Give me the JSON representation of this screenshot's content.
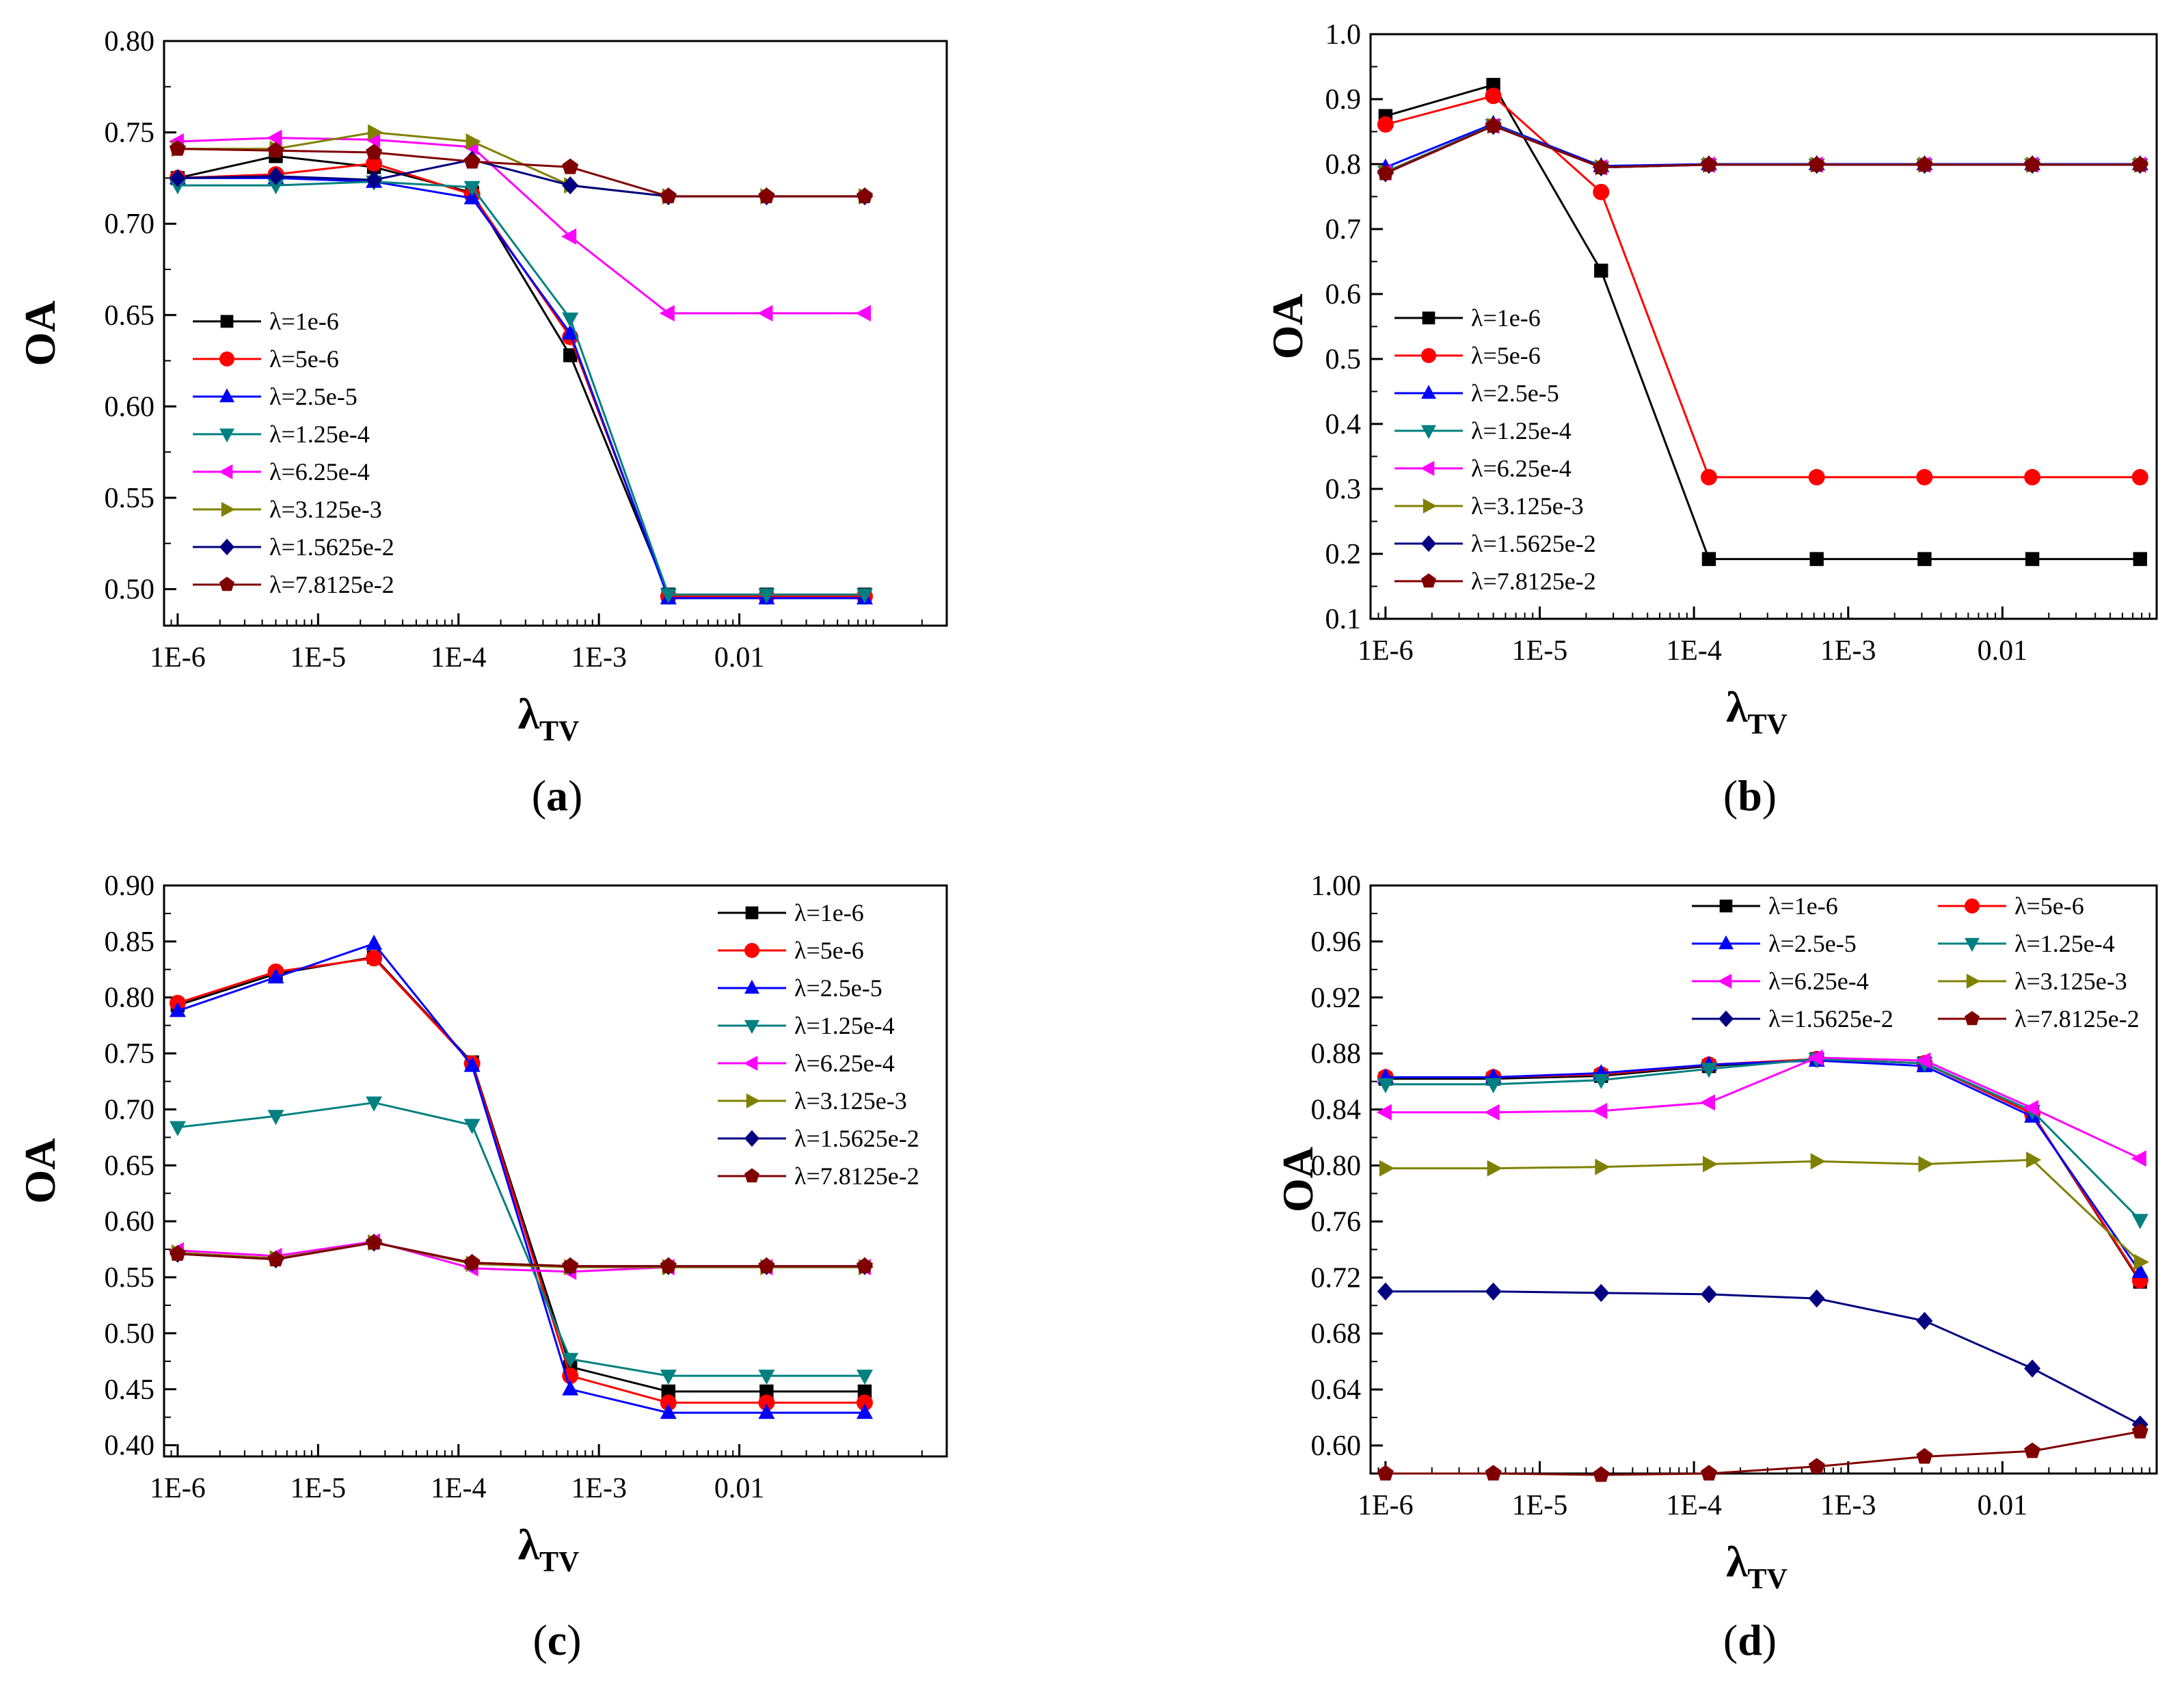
{
  "chart_data": [
    {
      "type": "line",
      "caption_letter": "a",
      "xlabel_main": "λ",
      "xlabel_sub": "TV",
      "ylabel": "OA",
      "x_scale": "log",
      "xlim": [
        8e-07,
        0.3
      ],
      "ylim": [
        0.48,
        0.8
      ],
      "xticks": [
        1e-06,
        1e-05,
        0.0001,
        0.001,
        0.01
      ],
      "xtick_labels": [
        "1E-6",
        "1E-5",
        "1E-4",
        "1E-3",
        "0.01"
      ],
      "yticks": [
        0.5,
        0.55,
        0.6,
        0.65,
        0.7,
        0.75,
        0.8
      ],
      "ytick_labels": [
        "0.50",
        "0.55",
        "0.60",
        "0.65",
        "0.70",
        "0.75",
        "0.80"
      ],
      "grid": false,
      "legend": {
        "position": "left",
        "columns": 1
      },
      "x": [
        1e-06,
        5e-06,
        2.5e-05,
        0.000125,
        0.000625,
        0.003125,
        0.015625,
        0.078125
      ],
      "series": [
        {
          "name": "λ=1e-6",
          "color": "#000000",
          "marker": "square",
          "values": [
            0.725,
            0.737,
            0.731,
            0.717,
            0.628,
            0.497,
            0.497,
            0.497
          ]
        },
        {
          "name": "λ=5e-6",
          "color": "#ff0000",
          "marker": "circle",
          "values": [
            0.725,
            0.727,
            0.733,
            0.716,
            0.638,
            0.496,
            0.496,
            0.496
          ]
        },
        {
          "name": "λ=2.5e-5",
          "color": "#0000ff",
          "marker": "triangle-up",
          "values": [
            0.725,
            0.725,
            0.723,
            0.714,
            0.64,
            0.495,
            0.495,
            0.495
          ]
        },
        {
          "name": "λ=1.25e-4",
          "color": "#008080",
          "marker": "triangle-down",
          "values": [
            0.721,
            0.721,
            0.723,
            0.72,
            0.648,
            0.497,
            0.497,
            0.497
          ]
        },
        {
          "name": "λ=6.25e-4",
          "color": "#ff00ff",
          "marker": "triangle-left",
          "values": [
            0.745,
            0.747,
            0.746,
            0.742,
            0.693,
            0.651,
            0.651,
            0.651
          ]
        },
        {
          "name": "λ=3.125e-3",
          "color": "#808000",
          "marker": "triangle-right",
          "values": [
            0.741,
            0.741,
            0.75,
            0.745,
            0.721,
            0.715,
            0.715,
            0.715
          ]
        },
        {
          "name": "λ=1.5625e-2",
          "color": "#000080",
          "marker": "diamond",
          "values": [
            0.725,
            0.726,
            0.724,
            0.735,
            0.721,
            0.715,
            0.715,
            0.715
          ]
        },
        {
          "name": "λ=7.8125e-2",
          "color": "#800000",
          "marker": "pentagon",
          "values": [
            0.741,
            0.74,
            0.739,
            0.734,
            0.731,
            0.715,
            0.715,
            0.715
          ]
        }
      ]
    },
    {
      "type": "line",
      "caption_letter": "b",
      "xlabel_main": "λ",
      "xlabel_sub": "TV",
      "ylabel": "OA",
      "x_scale": "log",
      "xlim": [
        8e-07,
        0.1
      ],
      "ylim": [
        0.1,
        1.0
      ],
      "xticks": [
        1e-06,
        1e-05,
        0.0001,
        0.001,
        0.01
      ],
      "xtick_labels": [
        "1E-6",
        "1E-5",
        "1E-4",
        "1E-3",
        "0.01"
      ],
      "yticks": [
        0.1,
        0.2,
        0.3,
        0.4,
        0.5,
        0.6,
        0.7,
        0.8,
        0.9,
        1.0
      ],
      "ytick_labels": [
        "0.1",
        "0.2",
        "0.3",
        "0.4",
        "0.5",
        "0.6",
        "0.7",
        "0.8",
        "0.9",
        "1.0"
      ],
      "grid": false,
      "legend": {
        "position": "left",
        "columns": 1
      },
      "x": [
        1e-06,
        5e-06,
        2.5e-05,
        0.000125,
        0.000625,
        0.003125,
        0.015625,
        0.078125
      ],
      "series": [
        {
          "name": "λ=1e-6",
          "color": "#000000",
          "marker": "square",
          "values": [
            0.874,
            0.922,
            0.636,
            0.192,
            0.192,
            0.192,
            0.192,
            0.192
          ]
        },
        {
          "name": "λ=5e-6",
          "color": "#ff0000",
          "marker": "circle",
          "values": [
            0.861,
            0.905,
            0.757,
            0.318,
            0.318,
            0.318,
            0.318,
            0.318
          ]
        },
        {
          "name": "λ=2.5e-5",
          "color": "#0000ff",
          "marker": "triangle-up",
          "values": [
            0.795,
            0.862,
            0.797,
            0.8,
            0.8,
            0.8,
            0.8,
            0.8
          ]
        },
        {
          "name": "λ=1.25e-4",
          "color": "#008080",
          "marker": "triangle-down",
          "values": [
            0.788,
            0.86,
            0.795,
            0.799,
            0.799,
            0.799,
            0.799,
            0.799
          ]
        },
        {
          "name": "λ=6.25e-4",
          "color": "#ff00ff",
          "marker": "triangle-left",
          "values": [
            0.787,
            0.859,
            0.795,
            0.799,
            0.799,
            0.799,
            0.799,
            0.799
          ]
        },
        {
          "name": "λ=3.125e-3",
          "color": "#808000",
          "marker": "triangle-right",
          "values": [
            0.787,
            0.859,
            0.795,
            0.799,
            0.799,
            0.799,
            0.799,
            0.799
          ]
        },
        {
          "name": "λ=1.5625e-2",
          "color": "#000080",
          "marker": "diamond",
          "values": [
            0.786,
            0.859,
            0.795,
            0.799,
            0.799,
            0.799,
            0.799,
            0.799
          ]
        },
        {
          "name": "λ=7.8125e-2",
          "color": "#800000",
          "marker": "pentagon",
          "values": [
            0.786,
            0.859,
            0.795,
            0.799,
            0.799,
            0.799,
            0.799,
            0.799
          ]
        }
      ]
    },
    {
      "type": "line",
      "caption_letter": "c",
      "xlabel_main": "λ",
      "xlabel_sub": "TV",
      "ylabel": "OA",
      "x_scale": "log",
      "xlim": [
        8e-07,
        0.3
      ],
      "ylim": [
        0.39,
        0.9
      ],
      "xticks": [
        1e-06,
        1e-05,
        0.0001,
        0.001,
        0.01
      ],
      "xtick_labels": [
        "1E-6",
        "1E-5",
        "1E-4",
        "1E-3",
        "0.01"
      ],
      "yticks": [
        0.4,
        0.45,
        0.5,
        0.55,
        0.6,
        0.65,
        0.7,
        0.75,
        0.8,
        0.85,
        0.9
      ],
      "ytick_labels": [
        "0.40",
        "0.45",
        "0.50",
        "0.55",
        "0.60",
        "0.65",
        "0.70",
        "0.75",
        "0.80",
        "0.85",
        "0.90"
      ],
      "grid": false,
      "legend": {
        "position": "top-right",
        "columns": 1
      },
      "x": [
        1e-06,
        5e-06,
        2.5e-05,
        0.000125,
        0.000625,
        0.003125,
        0.015625,
        0.078125
      ],
      "series": [
        {
          "name": "λ=1e-6",
          "color": "#000000",
          "marker": "square",
          "values": [
            0.793,
            0.821,
            0.836,
            0.742,
            0.47,
            0.448,
            0.448,
            0.448
          ]
        },
        {
          "name": "λ=5e-6",
          "color": "#ff0000",
          "marker": "circle",
          "values": [
            0.795,
            0.823,
            0.835,
            0.741,
            0.462,
            0.438,
            0.438,
            0.438
          ]
        },
        {
          "name": "λ=2.5e-5",
          "color": "#0000ff",
          "marker": "triangle-up",
          "values": [
            0.788,
            0.818,
            0.848,
            0.739,
            0.45,
            0.429,
            0.429,
            0.429
          ]
        },
        {
          "name": "λ=1.25e-4",
          "color": "#008080",
          "marker": "triangle-down",
          "values": [
            0.684,
            0.694,
            0.706,
            0.686,
            0.477,
            0.462,
            0.462,
            0.462
          ]
        },
        {
          "name": "λ=6.25e-4",
          "color": "#ff00ff",
          "marker": "triangle-left",
          "values": [
            0.574,
            0.569,
            0.582,
            0.558,
            0.555,
            0.559,
            0.559,
            0.559
          ]
        },
        {
          "name": "λ=3.125e-3",
          "color": "#808000",
          "marker": "triangle-right",
          "values": [
            0.572,
            0.567,
            0.581,
            0.562,
            0.559,
            0.559,
            0.559,
            0.559
          ]
        },
        {
          "name": "λ=1.5625e-2",
          "color": "#000080",
          "marker": "diamond",
          "values": [
            0.571,
            0.566,
            0.581,
            0.563,
            0.56,
            0.56,
            0.56,
            0.56
          ]
        },
        {
          "name": "λ=7.8125e-2",
          "color": "#800000",
          "marker": "pentagon",
          "values": [
            0.571,
            0.566,
            0.581,
            0.563,
            0.56,
            0.56,
            0.56,
            0.56
          ]
        }
      ]
    },
    {
      "type": "line",
      "caption_letter": "d",
      "xlabel_main": "λ",
      "xlabel_sub": "TV",
      "ylabel": "OA",
      "x_scale": "log",
      "xlim": [
        8e-07,
        0.1
      ],
      "ylim": [
        0.58,
        1.0
      ],
      "xticks": [
        1e-06,
        1e-05,
        0.0001,
        0.001,
        0.01
      ],
      "xtick_labels": [
        "1E-6",
        "1E-5",
        "1E-4",
        "1E-3",
        "0.01"
      ],
      "yticks": [
        0.6,
        0.64,
        0.68,
        0.72,
        0.76,
        0.8,
        0.84,
        0.88,
        0.92,
        0.96,
        1.0
      ],
      "ytick_labels": [
        "0.60",
        "0.64",
        "0.68",
        "0.72",
        "0.76",
        "0.80",
        "0.84",
        "0.88",
        "0.92",
        "0.96",
        "1.00"
      ],
      "grid": false,
      "legend": {
        "position": "top-right",
        "columns": 2
      },
      "x": [
        1e-06,
        5e-06,
        2.5e-05,
        0.000125,
        0.000625,
        0.003125,
        0.015625,
        0.078125
      ],
      "series": [
        {
          "name": "λ=1e-6",
          "color": "#000000",
          "marker": "square",
          "values": [
            0.862,
            0.862,
            0.864,
            0.871,
            0.876,
            0.873,
            0.837,
            0.717
          ]
        },
        {
          "name": "λ=5e-6",
          "color": "#ff0000",
          "marker": "circle",
          "values": [
            0.863,
            0.863,
            0.865,
            0.872,
            0.876,
            0.873,
            0.837,
            0.718
          ]
        },
        {
          "name": "λ=2.5e-5",
          "color": "#0000ff",
          "marker": "triangle-up",
          "values": [
            0.863,
            0.863,
            0.866,
            0.872,
            0.875,
            0.871,
            0.835,
            0.724
          ]
        },
        {
          "name": "λ=1.25e-4",
          "color": "#008080",
          "marker": "triangle-down",
          "values": [
            0.858,
            0.858,
            0.861,
            0.869,
            0.876,
            0.873,
            0.839,
            0.761
          ]
        },
        {
          "name": "λ=6.25e-4",
          "color": "#ff00ff",
          "marker": "triangle-left",
          "values": [
            0.838,
            0.838,
            0.839,
            0.845,
            0.877,
            0.875,
            0.841,
            0.805
          ]
        },
        {
          "name": "λ=3.125e-3",
          "color": "#808000",
          "marker": "triangle-right",
          "values": [
            0.798,
            0.798,
            0.799,
            0.801,
            0.803,
            0.801,
            0.804,
            0.731
          ]
        },
        {
          "name": "λ=1.5625e-2",
          "color": "#000080",
          "marker": "diamond",
          "values": [
            0.71,
            0.71,
            0.709,
            0.708,
            0.705,
            0.689,
            0.655,
            0.615
          ]
        },
        {
          "name": "λ=7.8125e-2",
          "color": "#800000",
          "marker": "pentagon",
          "values": [
            0.58,
            0.58,
            0.579,
            0.58,
            0.585,
            0.592,
            0.596,
            0.61
          ]
        }
      ]
    }
  ]
}
